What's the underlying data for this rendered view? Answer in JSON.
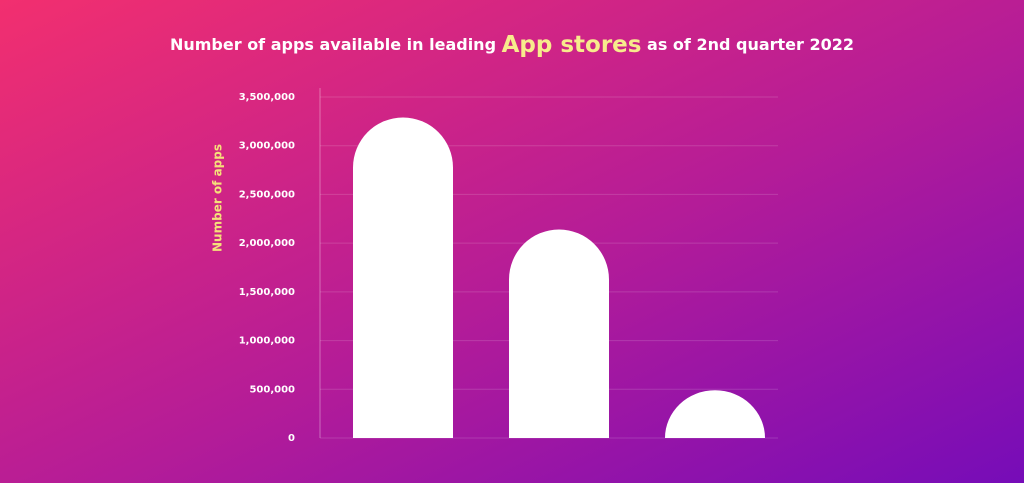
{
  "chart_data": {
    "type": "bar",
    "title": [
      "Number of apps available in leading",
      "App stores",
      "as of 2nd quarter 2022"
    ],
    "y_label": "Number of apps",
    "categories": [
      null,
      null,
      null
    ],
    "values": [
      3290000,
      2140000,
      490000
    ],
    "color": "#ffffff",
    "ylim": [
      0,
      3500000
    ],
    "yticks": [
      0,
      {
        "value": 500000,
        "label": "500,000"
      },
      {
        "value": 1000000,
        "label": "1,000,000"
      },
      {
        "value": 1500000,
        "label": "1,500,000"
      },
      {
        "value": 2000000,
        "label": "2,000,000"
      },
      {
        "value": 2500000,
        "label": "2,500,000"
      },
      {
        "value": 3000000,
        "label": "3,000,000"
      },
      {
        "value": 3500000,
        "label": "3,500,000"
      }
    ],
    "grid": true
  }
}
